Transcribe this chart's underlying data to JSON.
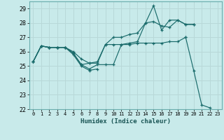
{
  "xlabel": "Humidex (Indice chaleur)",
  "background_color": "#c8eaea",
  "grid_color": "#b8d8d8",
  "line_color": "#1a6b6b",
  "xlim": [
    -0.5,
    23.5
  ],
  "ylim": [
    22,
    29.5
  ],
  "yticks": [
    22,
    23,
    24,
    25,
    26,
    27,
    28,
    29
  ],
  "xtick_labels": [
    "0",
    "1",
    "2",
    "3",
    "4",
    "5",
    "6",
    "7",
    "8",
    "9",
    "10",
    "11",
    "12",
    "13",
    "14",
    "15",
    "16",
    "17",
    "18",
    "19",
    "20",
    "21",
    "22",
    "23"
  ],
  "series": [
    [
      25.3,
      26.4,
      26.3,
      26.3,
      26.3,
      25.9,
      25.1,
      24.8,
      25.1,
      25.1,
      25.1,
      26.5,
      26.5,
      26.6,
      26.6,
      26.6,
      26.6,
      26.7,
      26.7,
      27.0,
      null,
      null,
      null,
      null
    ],
    [
      25.3,
      26.4,
      26.3,
      26.3,
      26.3,
      26.0,
      25.5,
      25.2,
      25.2,
      26.5,
      26.5,
      26.5,
      26.6,
      26.7,
      28.0,
      28.1,
      27.8,
      27.7,
      28.2,
      27.9,
      27.9,
      null,
      null,
      null
    ],
    [
      25.3,
      26.4,
      26.3,
      26.3,
      26.3,
      25.9,
      25.1,
      25.2,
      25.3,
      26.5,
      27.0,
      27.0,
      27.2,
      27.3,
      28.0,
      29.2,
      27.5,
      28.2,
      28.2,
      27.9,
      27.9,
      null,
      null,
      null
    ],
    [
      25.3,
      26.4,
      26.3,
      26.3,
      26.3,
      25.8,
      25.0,
      24.7,
      24.8,
      null,
      null,
      null,
      null,
      null,
      null,
      null,
      null,
      null,
      null,
      27.0,
      24.7,
      22.3,
      22.1,
      null
    ]
  ]
}
